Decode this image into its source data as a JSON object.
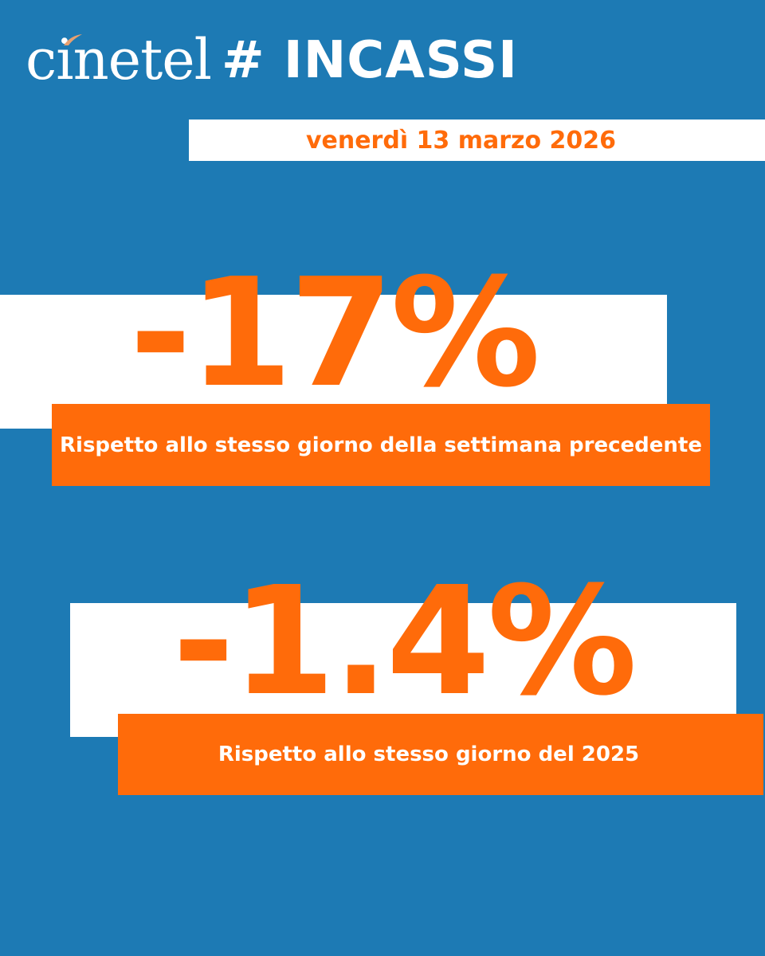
{
  "header": {
    "logo_text": "cinetel",
    "title": "# INCASSI"
  },
  "date": "venerdì 13 marzo 2026",
  "stats": [
    {
      "value": "-17%",
      "caption": "Rispetto allo stesso giorno della settimana precedente"
    },
    {
      "value": "-1.4%",
      "caption": "Rispetto allo stesso giorno del 2025"
    }
  ],
  "colors": {
    "background": "#1d7ab4",
    "accent": "#ff6b0a",
    "white": "#ffffff"
  }
}
